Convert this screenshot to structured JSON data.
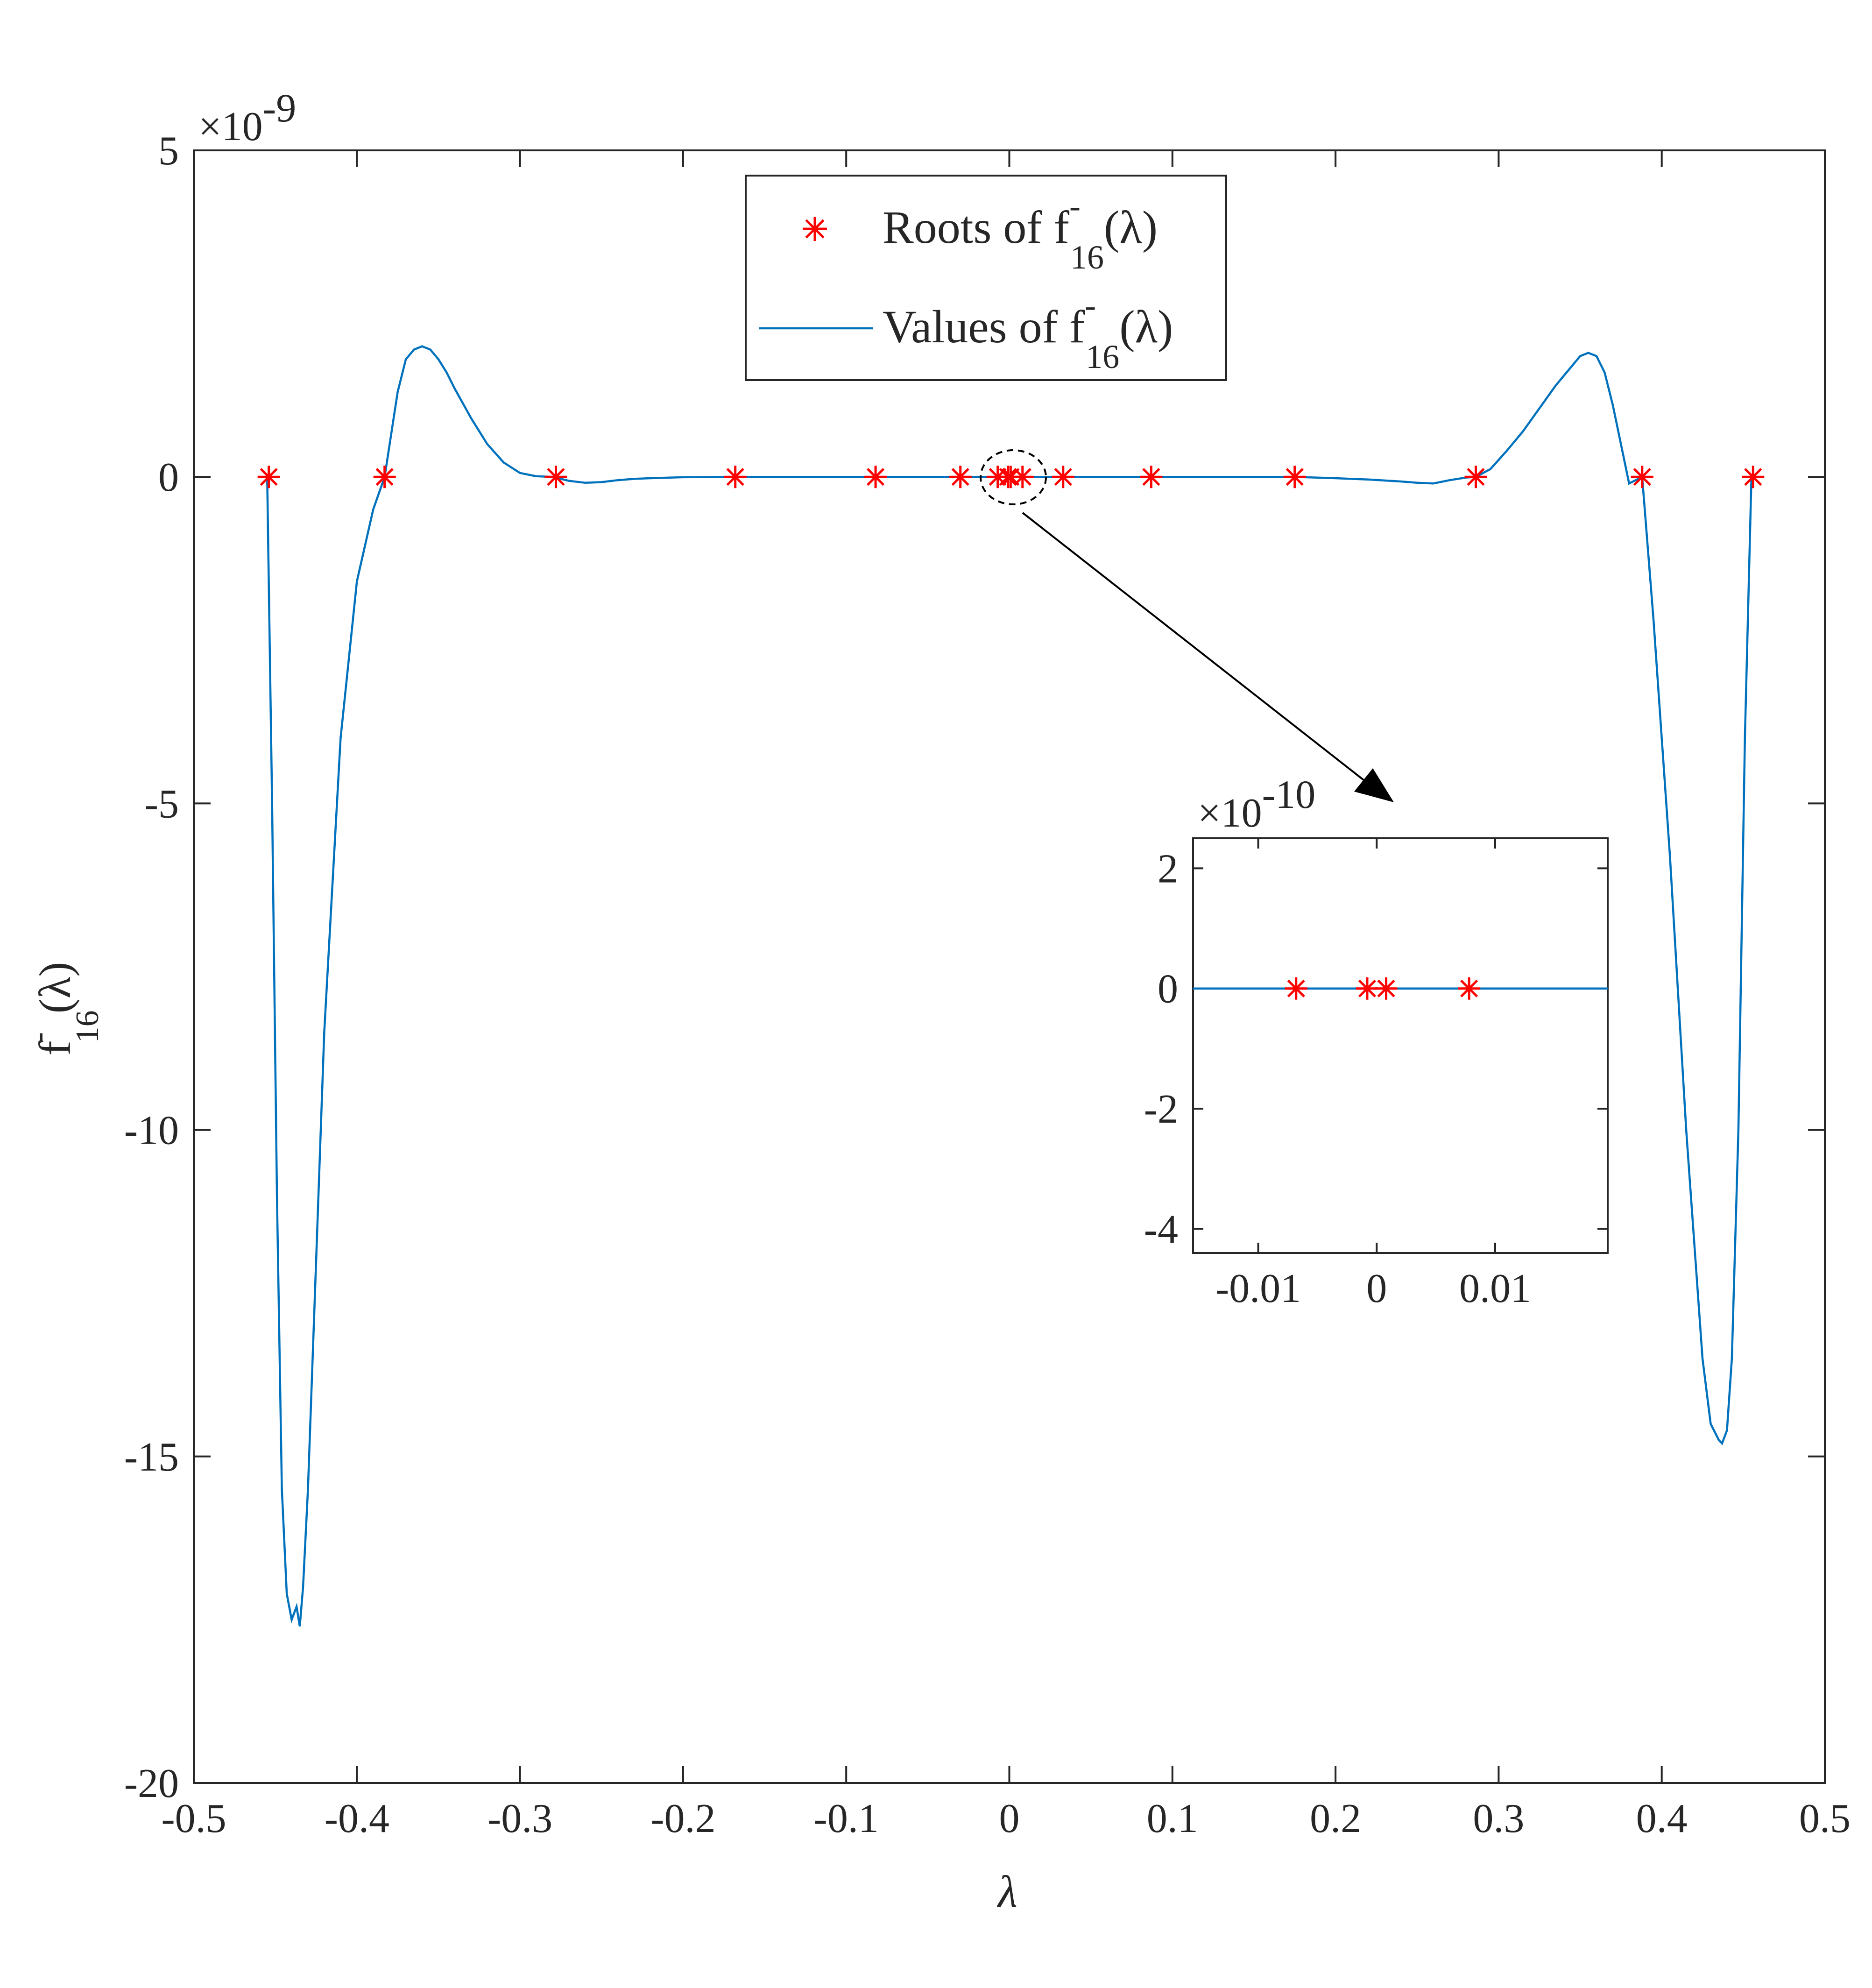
{
  "chart_data": {
    "type": "line",
    "xlabel": "λ",
    "ylabel": {
      "base": "f",
      "sup": "-",
      "sub": "16",
      "arg": "(λ)"
    },
    "xlim": [
      -0.5,
      0.5
    ],
    "ylim": [
      -20,
      5
    ],
    "y_exponent": {
      "prefix": "×10",
      "power": "-9"
    },
    "x_ticks": [
      -0.5,
      -0.4,
      -0.3,
      -0.2,
      -0.1,
      0,
      0.1,
      0.2,
      0.3,
      0.4,
      0.5
    ],
    "x_tick_labels": [
      "-0.5",
      "-0.4",
      "-0.3",
      "-0.2",
      "-0.1",
      "0",
      "0.1",
      "0.2",
      "0.3",
      "0.4",
      "0.5"
    ],
    "y_ticks": [
      5,
      0,
      -5,
      -10,
      -15,
      -20
    ],
    "y_tick_labels": [
      "5",
      "0",
      "-5",
      "-10",
      "-15",
      "-20"
    ],
    "grid": false,
    "legend": {
      "position": "top-center",
      "entries": [
        {
          "prefix": "Roots of f",
          "sup": "-",
          "sub": "16",
          "suffix": "(λ)",
          "marker": "asterisk",
          "color": "#ff0000"
        },
        {
          "prefix": "Values of f",
          "sup": "-",
          "sub": "16",
          "suffix": "(λ)",
          "marker": "line",
          "color": "#0072bd"
        }
      ]
    },
    "series": [
      {
        "name": "Values of f-16(λ)",
        "color": "#0072bd",
        "x": [
          -0.455,
          -0.452,
          -0.449,
          -0.446,
          -0.443,
          -0.44,
          -0.437,
          -0.435,
          -0.433,
          -0.43,
          -0.425,
          -0.42,
          -0.41,
          -0.4,
          -0.39,
          -0.383,
          -0.375,
          -0.37,
          -0.365,
          -0.36,
          -0.355,
          -0.35,
          -0.345,
          -0.34,
          -0.33,
          -0.32,
          -0.31,
          -0.3,
          -0.29,
          -0.28,
          -0.27,
          -0.26,
          -0.25,
          -0.24,
          -0.23,
          -0.22,
          -0.2,
          -0.168,
          -0.12,
          -0.082,
          -0.03,
          0.0,
          0.033,
          0.087,
          0.13,
          0.175,
          0.2,
          0.22,
          0.24,
          0.25,
          0.26,
          0.27,
          0.28,
          0.286,
          0.295,
          0.305,
          0.315,
          0.325,
          0.335,
          0.345,
          0.35,
          0.355,
          0.36,
          0.365,
          0.37,
          0.375,
          0.38,
          0.388,
          0.395,
          0.405,
          0.415,
          0.425,
          0.43,
          0.435,
          0.437,
          0.44,
          0.443,
          0.447,
          0.451,
          0.455
        ],
        "y": [
          0,
          -5,
          -11,
          -15.5,
          -17.1,
          -17.5,
          -17.3,
          -17.6,
          -17.0,
          -15.5,
          -12.0,
          -8.5,
          -4.0,
          -1.6,
          -0.5,
          0,
          1.3,
          1.8,
          1.95,
          2.0,
          1.95,
          1.8,
          1.6,
          1.35,
          0.9,
          0.5,
          0.22,
          0.06,
          0.01,
          0,
          -0.06,
          -0.09,
          -0.08,
          -0.05,
          -0.03,
          -0.02,
          -0.005,
          0,
          0,
          0,
          0,
          0,
          0,
          0,
          0,
          0,
          -0.02,
          -0.04,
          -0.07,
          -0.09,
          -0.1,
          -0.05,
          -0.01,
          0,
          0.12,
          0.4,
          0.7,
          1.05,
          1.4,
          1.7,
          1.85,
          1.9,
          1.85,
          1.6,
          1.1,
          0.5,
          -0.1,
          0,
          -2.2,
          -5.8,
          -10.0,
          -13.5,
          -14.5,
          -14.75,
          -14.8,
          -14.6,
          -13.5,
          -10.0,
          -4.0,
          0
        ]
      },
      {
        "name": "Roots of f-16(λ)",
        "color": "#ff0000",
        "marker": "asterisk",
        "x": [
          -0.454,
          -0.383,
          -0.278,
          -0.168,
          -0.082,
          -0.03,
          -0.0071,
          -0.0008,
          0.0008,
          0.0081,
          0.033,
          0.087,
          0.175,
          0.286,
          0.388,
          0.456
        ],
        "y": [
          0,
          0,
          0,
          0,
          0,
          0,
          0,
          0,
          0,
          0,
          0,
          0,
          0,
          0,
          0,
          0
        ]
      }
    ],
    "inset": {
      "type": "line",
      "xlim": [
        -0.0155,
        0.0195
      ],
      "ylim": [
        -4.4,
        2.5
      ],
      "y_exponent": {
        "prefix": "×10",
        "power": "-10"
      },
      "x_ticks": [
        -0.01,
        0,
        0.01
      ],
      "x_tick_labels": [
        "-0.01",
        "0",
        "0.01"
      ],
      "y_ticks": [
        2,
        0,
        -2,
        -4
      ],
      "y_tick_labels": [
        "2",
        "0",
        "-2",
        "-4"
      ],
      "series": [
        {
          "name": "Values of f-16(λ)",
          "color": "#0072bd",
          "x": [
            -0.0155,
            0.0195
          ],
          "y": [
            0,
            0
          ]
        },
        {
          "name": "Roots of f-16(λ)",
          "color": "#ff0000",
          "marker": "asterisk",
          "x": [
            -0.0068,
            -0.0008,
            0.0008,
            0.0078
          ],
          "y": [
            0,
            0,
            0,
            0
          ]
        }
      ]
    }
  }
}
